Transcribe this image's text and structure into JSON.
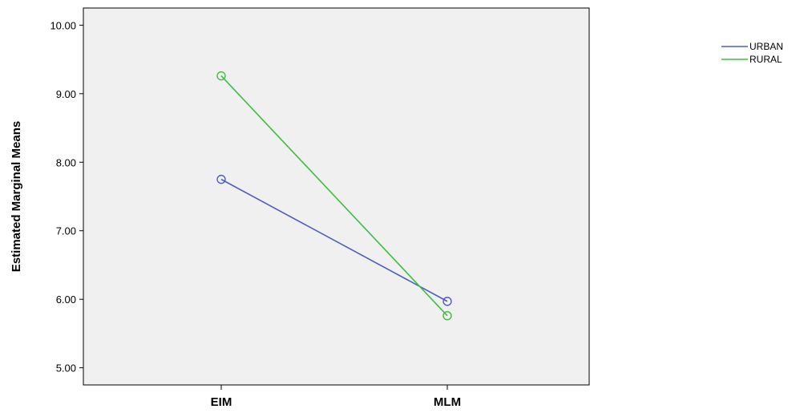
{
  "chart_data": {
    "type": "line",
    "title": "",
    "xlabel": "",
    "ylabel": "Estimated Marginal Means",
    "categories": [
      "EIM",
      "MLM"
    ],
    "ylim": [
      4.75,
      10.25
    ],
    "yticks": [
      "5.00",
      "6.00",
      "7.00",
      "8.00",
      "9.00",
      "10.00"
    ],
    "grid": false,
    "legend_position": "top-right",
    "series": [
      {
        "name": "URBAN",
        "color": "#4f5fbf",
        "values": [
          7.75,
          5.97
        ]
      },
      {
        "name": "RURAL",
        "color": "#3dbf3d",
        "values": [
          9.26,
          5.76
        ]
      }
    ],
    "plot_background": "#f0f0f0"
  }
}
